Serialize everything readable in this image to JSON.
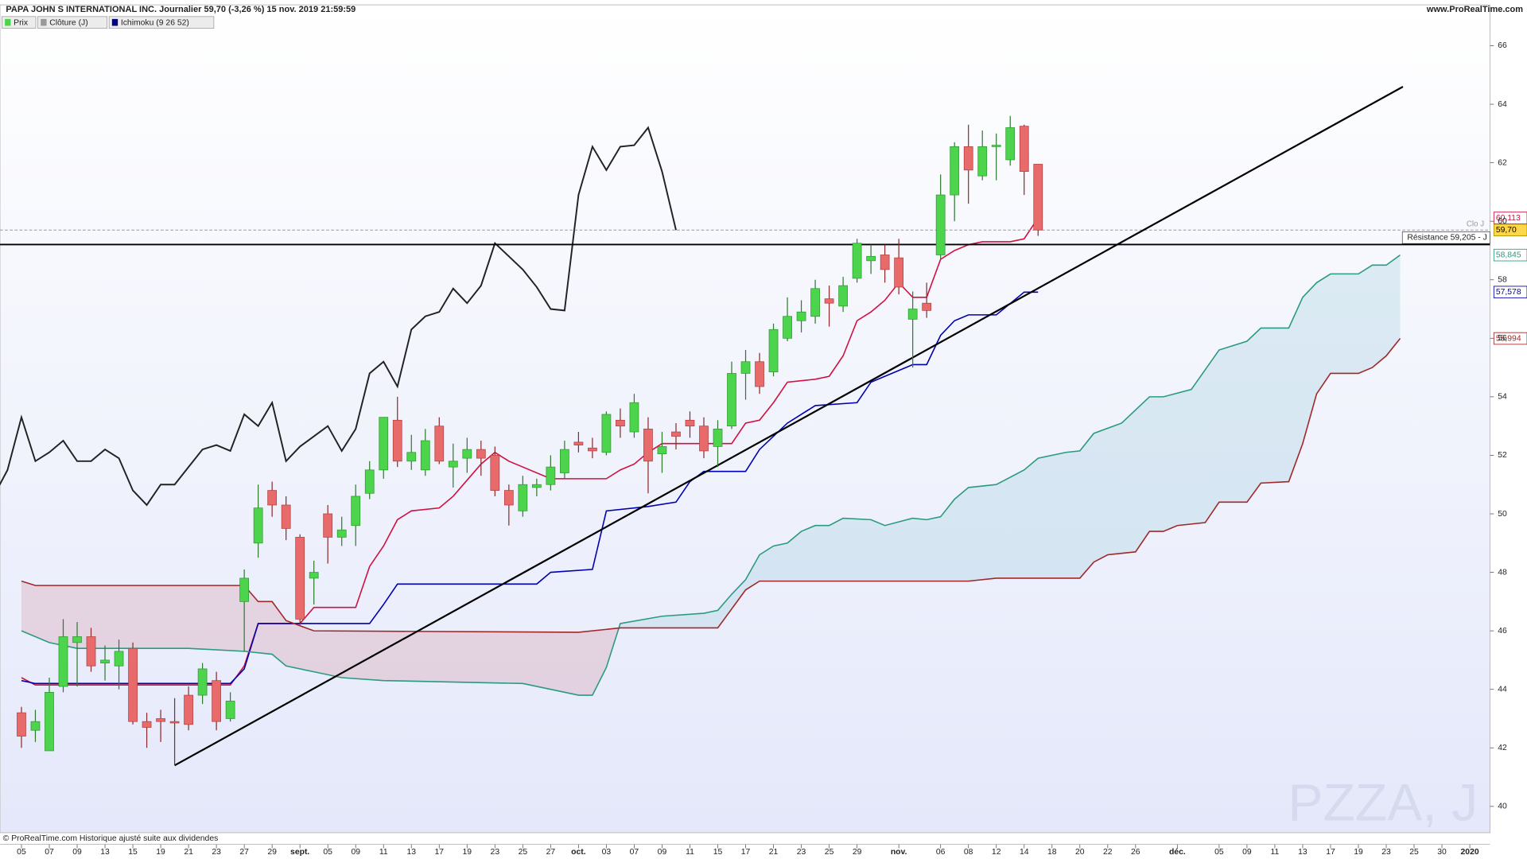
{
  "chart_data": {
    "type": "candlestick",
    "title": "PAPA JOHN S INTERNATIONAL INC. Journalier 59,70 (-3,26 %) 15 nov. 2019 21:59:59",
    "source": "www.ProRealTime.com",
    "footer": "© ProRealTime.com Historique ajusté suite aux dividendes",
    "watermark": "PZZA, J",
    "legend": [
      {
        "label": "Prix",
        "color": "#4cd44c"
      },
      {
        "label": "Clôture (J)",
        "color": "#999999"
      },
      {
        "label": "Ichimoku (9 26 52)",
        "color": "#000080"
      }
    ],
    "xlim": [
      -1.54,
      105.45
    ],
    "ylim": [
      39.1,
      67.23
    ],
    "yticks": [
      40,
      42,
      44,
      46,
      48,
      50,
      52,
      54,
      56,
      58,
      60,
      62,
      64,
      66
    ],
    "xticks": [
      {
        "value": 0,
        "label": "05"
      },
      {
        "value": 2,
        "label": "07"
      },
      {
        "value": 4,
        "label": "09"
      },
      {
        "value": 6,
        "label": "13"
      },
      {
        "value": 8,
        "label": "15"
      },
      {
        "value": 10,
        "label": "19"
      },
      {
        "value": 12,
        "label": "21"
      },
      {
        "value": 14,
        "label": "23"
      },
      {
        "value": 16,
        "label": "27"
      },
      {
        "value": 18,
        "label": "29"
      },
      {
        "value": 20,
        "label": "sept."
      },
      {
        "value": 22,
        "label": "05"
      },
      {
        "value": 24,
        "label": "09"
      },
      {
        "value": 26,
        "label": "11"
      },
      {
        "value": 28,
        "label": "13"
      },
      {
        "value": 30,
        "label": "17"
      },
      {
        "value": 32,
        "label": "19"
      },
      {
        "value": 34,
        "label": "23"
      },
      {
        "value": 36,
        "label": "25"
      },
      {
        "value": 38,
        "label": "27"
      },
      {
        "value": 40,
        "label": "oct."
      },
      {
        "value": 42,
        "label": "03"
      },
      {
        "value": 44,
        "label": "07"
      },
      {
        "value": 46,
        "label": "09"
      },
      {
        "value": 48,
        "label": "11"
      },
      {
        "value": 50,
        "label": "15"
      },
      {
        "value": 52,
        "label": "17"
      },
      {
        "value": 54,
        "label": "21"
      },
      {
        "value": 56,
        "label": "23"
      },
      {
        "value": 58,
        "label": "25"
      },
      {
        "value": 60,
        "label": "29"
      },
      {
        "value": 63,
        "label": "nov."
      },
      {
        "value": 66,
        "label": "06"
      },
      {
        "value": 68,
        "label": "08"
      },
      {
        "value": 70,
        "label": "12"
      },
      {
        "value": 72,
        "label": "14"
      },
      {
        "value": 74,
        "label": "18"
      },
      {
        "value": 76,
        "label": "20"
      },
      {
        "value": 78,
        "label": "22"
      },
      {
        "value": 80,
        "label": "26"
      },
      {
        "value": 83,
        "label": "déc."
      },
      {
        "value": 86,
        "label": "05"
      },
      {
        "value": 88,
        "label": "09"
      },
      {
        "value": 90,
        "label": "11"
      },
      {
        "value": 92,
        "label": "13"
      },
      {
        "value": 94,
        "label": "17"
      },
      {
        "value": 96,
        "label": "19"
      },
      {
        "value": 98,
        "label": "23"
      },
      {
        "value": 100,
        "label": "25"
      },
      {
        "value": 102,
        "label": "30"
      },
      {
        "value": 104,
        "label": "2020"
      }
    ],
    "candles": {
      "up_color": "#4cd44c",
      "down_color": "#e86a6a",
      "open": [
        43.2,
        42.6,
        41.9,
        44.1,
        45.6,
        45.8,
        44.9,
        44.8,
        45.4,
        42.9,
        43.0,
        42.9,
        43.8,
        43.8,
        44.3,
        43.0,
        47.0,
        49.0,
        50.8,
        50.3,
        49.2,
        47.8,
        50.0,
        49.2,
        49.6,
        50.7,
        51.5,
        53.2,
        51.8,
        51.5,
        53.0,
        51.6,
        51.9,
        52.2,
        52.0,
        50.8,
        50.1,
        50.9,
        51.0,
        51.4,
        52.45,
        52.25,
        52.1,
        53.2,
        52.8,
        52.9,
        52.05,
        52.8,
        53.2,
        53.0,
        52.3,
        53.0,
        54.8,
        55.2,
        54.85,
        56.0,
        56.6,
        56.75,
        57.35,
        57.1,
        58.05,
        58.65,
        58.85,
        58.75,
        56.65,
        57.2,
        58.85,
        60.9,
        62.55,
        61.55,
        62.55,
        62.1,
        63.25,
        61.95
      ],
      "high": [
        43.4,
        43.3,
        44.4,
        46.4,
        46.3,
        46.1,
        45.5,
        45.7,
        45.6,
        43.2,
        43.3,
        43.7,
        44.1,
        44.9,
        44.6,
        43.9,
        48.1,
        51.0,
        51.1,
        50.6,
        49.3,
        48.4,
        50.3,
        49.9,
        51.0,
        51.8,
        53.3,
        54.0,
        52.7,
        52.9,
        53.3,
        52.4,
        52.6,
        52.5,
        52.3,
        51.0,
        51.3,
        51.2,
        52.0,
        52.5,
        52.8,
        52.6,
        53.5,
        53.6,
        54.1,
        53.3,
        52.8,
        53.1,
        53.5,
        53.3,
        53.2,
        55.2,
        55.6,
        55.5,
        56.5,
        57.4,
        57.3,
        58.0,
        57.8,
        58.1,
        59.4,
        59.2,
        59.2,
        59.4,
        57.6,
        57.9,
        61.6,
        62.7,
        63.3,
        63.1,
        63.0,
        63.6,
        63.3,
        61.95
      ],
      "low": [
        42.0,
        42.2,
        41.9,
        43.9,
        44.1,
        44.6,
        44.3,
        44.0,
        42.8,
        42.0,
        42.2,
        41.4,
        42.6,
        43.5,
        42.6,
        42.9,
        45.3,
        48.5,
        49.9,
        49.1,
        46.2,
        46.9,
        48.3,
        48.9,
        48.9,
        50.5,
        51.2,
        51.6,
        51.5,
        51.3,
        51.7,
        50.9,
        51.4,
        51.3,
        50.6,
        49.6,
        49.9,
        50.6,
        50.8,
        51.2,
        52.1,
        51.9,
        52.0,
        52.6,
        52.6,
        50.7,
        51.4,
        52.2,
        52.6,
        51.9,
        51.6,
        52.9,
        53.9,
        54.1,
        54.7,
        55.9,
        56.2,
        56.5,
        56.4,
        56.9,
        57.9,
        58.2,
        57.9,
        57.5,
        55.0,
        56.7,
        58.7,
        60.0,
        60.6,
        61.4,
        61.4,
        61.9,
        60.9,
        59.5
      ],
      "close": [
        42.4,
        42.9,
        43.9,
        45.8,
        45.8,
        44.8,
        45.0,
        45.3,
        42.9,
        42.7,
        42.9,
        42.85,
        42.8,
        44.7,
        42.9,
        43.6,
        47.8,
        50.2,
        50.3,
        49.5,
        46.4,
        48.0,
        49.2,
        49.45,
        50.6,
        51.5,
        53.3,
        51.8,
        52.1,
        52.5,
        51.8,
        51.8,
        52.2,
        51.9,
        50.8,
        50.3,
        51.0,
        51.0,
        51.6,
        52.2,
        52.35,
        52.15,
        53.4,
        53.0,
        53.8,
        51.8,
        52.3,
        52.65,
        53.0,
        52.15,
        52.9,
        54.8,
        55.2,
        54.35,
        56.3,
        56.75,
        56.9,
        57.7,
        57.2,
        57.8,
        59.25,
        58.8,
        58.35,
        57.75,
        57.0,
        56.95,
        60.9,
        62.55,
        61.75,
        62.55,
        62.6,
        63.2,
        61.7,
        59.7
      ],
      "value_label": "59,70"
    },
    "close_line_label": "Clo J",
    "lines": [
      {
        "color": "#d01040",
        "value_label": "60,113",
        "x": [
          0,
          1,
          15,
          16,
          17,
          20,
          21,
          24,
          25,
          26,
          27,
          28,
          30,
          31,
          33,
          34,
          35,
          38,
          42,
          43,
          44,
          45,
          46,
          48,
          51,
          52,
          53,
          54,
          55,
          57,
          58,
          59,
          60,
          61,
          62,
          63,
          64,
          65,
          66,
          67,
          68,
          69,
          71,
          72,
          73
        ],
        "values": [
          44.4,
          44.15,
          44.15,
          44.8,
          46.25,
          46.25,
          46.8,
          46.8,
          48.2,
          48.9,
          49.8,
          50.1,
          50.2,
          50.6,
          51.7,
          52.1,
          51.8,
          51.2,
          51.2,
          51.5,
          51.7,
          52.1,
          52.4,
          52.4,
          52.4,
          53.1,
          53.2,
          53.8,
          54.5,
          54.6,
          54.7,
          55.4,
          56.6,
          56.9,
          57.3,
          57.9,
          57.4,
          57.4,
          58.7,
          59.0,
          59.2,
          59.3,
          59.3,
          59.4,
          60.113
        ]
      },
      {
        "color": "#0000b0",
        "value_label": "57,578",
        "x": [
          0,
          1,
          15,
          16,
          17,
          25,
          26,
          27,
          37,
          38,
          41,
          42,
          45,
          47,
          48,
          49,
          52,
          53,
          55,
          57,
          60,
          61,
          62,
          64,
          65,
          66,
          67,
          68,
          70,
          72,
          73
        ],
        "values": [
          44.3,
          44.2,
          44.2,
          44.7,
          46.25,
          46.25,
          46.9,
          47.6,
          47.6,
          48.0,
          48.1,
          50.1,
          50.25,
          50.4,
          51.1,
          51.45,
          51.45,
          52.2,
          53.1,
          53.7,
          53.8,
          54.5,
          54.7,
          55.1,
          55.1,
          56.1,
          56.6,
          56.8,
          56.8,
          57.578,
          57.578
        ]
      },
      {
        "color": "#222222",
        "x": [
          -2,
          -1,
          0,
          1,
          2,
          3,
          4,
          5,
          6,
          7,
          8,
          9,
          10,
          11,
          12,
          13,
          14,
          15,
          16,
          17,
          18,
          19,
          20,
          21,
          22,
          23,
          24,
          25,
          26,
          27,
          28,
          29,
          30,
          31,
          32,
          33,
          34,
          35,
          36,
          37,
          38,
          39,
          40,
          41,
          42,
          43,
          44,
          45,
          46,
          47
        ],
        "values": [
          50.6,
          51.5,
          53.3,
          51.8,
          52.1,
          52.5,
          51.8,
          51.8,
          52.2,
          51.9,
          50.8,
          50.3,
          51.0,
          51.0,
          51.6,
          52.2,
          52.35,
          52.15,
          53.4,
          53.0,
          53.8,
          51.8,
          52.3,
          52.65,
          53.0,
          52.15,
          52.9,
          54.8,
          55.2,
          54.35,
          56.3,
          56.75,
          56.9,
          57.7,
          57.2,
          57.8,
          59.25,
          58.8,
          58.35,
          57.75,
          57.0,
          56.95,
          60.9,
          62.55,
          61.75,
          62.55,
          62.6,
          63.2,
          61.7,
          59.7
        ]
      },
      {
        "color": "#2a9a80",
        "value_label": "58,845",
        "x": [
          0,
          2,
          4,
          9,
          12,
          16,
          18,
          19,
          21,
          23,
          26,
          36,
          38,
          40,
          41,
          42,
          43,
          46,
          49,
          50,
          51,
          52,
          53,
          54,
          55,
          56,
          57,
          58,
          59,
          61,
          62,
          64,
          65,
          66,
          67,
          68,
          70,
          71,
          72,
          73,
          75,
          76,
          77,
          79,
          81,
          82,
          84,
          86,
          88,
          89,
          91,
          92,
          93,
          94,
          96,
          97,
          98,
          99
        ],
        "values": [
          46.0,
          45.6,
          45.4,
          45.4,
          45.4,
          45.3,
          45.2,
          44.8,
          44.6,
          44.4,
          44.3,
          44.2,
          44.0,
          43.8,
          43.8,
          44.75,
          46.25,
          46.5,
          46.6,
          46.7,
          47.25,
          47.75,
          48.6,
          48.9,
          49.0,
          49.4,
          49.6,
          49.6,
          49.85,
          49.8,
          49.6,
          49.85,
          49.8,
          49.9,
          50.5,
          50.9,
          51.0,
          51.25,
          51.5,
          51.9,
          52.1,
          52.15,
          52.75,
          53.1,
          54.0,
          54.0,
          54.25,
          55.6,
          55.9,
          56.35,
          56.35,
          57.4,
          57.9,
          58.2,
          58.2,
          58.5,
          58.5,
          58.845
        ]
      },
      {
        "color": "#a02828",
        "value_label": "55,994",
        "x": [
          0,
          1,
          16,
          17,
          18,
          19,
          21,
          40,
          43,
          50,
          51,
          52,
          53,
          68,
          70,
          76,
          77,
          78,
          80,
          81,
          82,
          83,
          85,
          86,
          88,
          89,
          91,
          92,
          93,
          94,
          96,
          97,
          98,
          99
        ],
        "values": [
          47.7,
          47.55,
          47.55,
          47.0,
          47.0,
          46.35,
          46.0,
          45.95,
          46.1,
          46.1,
          46.75,
          47.4,
          47.7,
          47.7,
          47.8,
          47.8,
          48.35,
          48.6,
          48.7,
          49.4,
          49.4,
          49.6,
          49.7,
          50.4,
          50.4,
          51.05,
          51.1,
          52.4,
          54.1,
          54.8,
          54.8,
          55.0,
          55.4,
          55.994
        ]
      }
    ],
    "cloud": {
      "upper_line": 3,
      "lower_line": 4,
      "up_color": "#a8d0e0",
      "down_color": "#d8a0b0"
    },
    "trendline": {
      "x": [
        11,
        99.2
      ],
      "values": [
        41.4,
        64.6
      ],
      "color": "#000000"
    },
    "resistance": {
      "value": 59.205,
      "label": "Résistance 59,205 - J",
      "color": "#000000"
    }
  }
}
